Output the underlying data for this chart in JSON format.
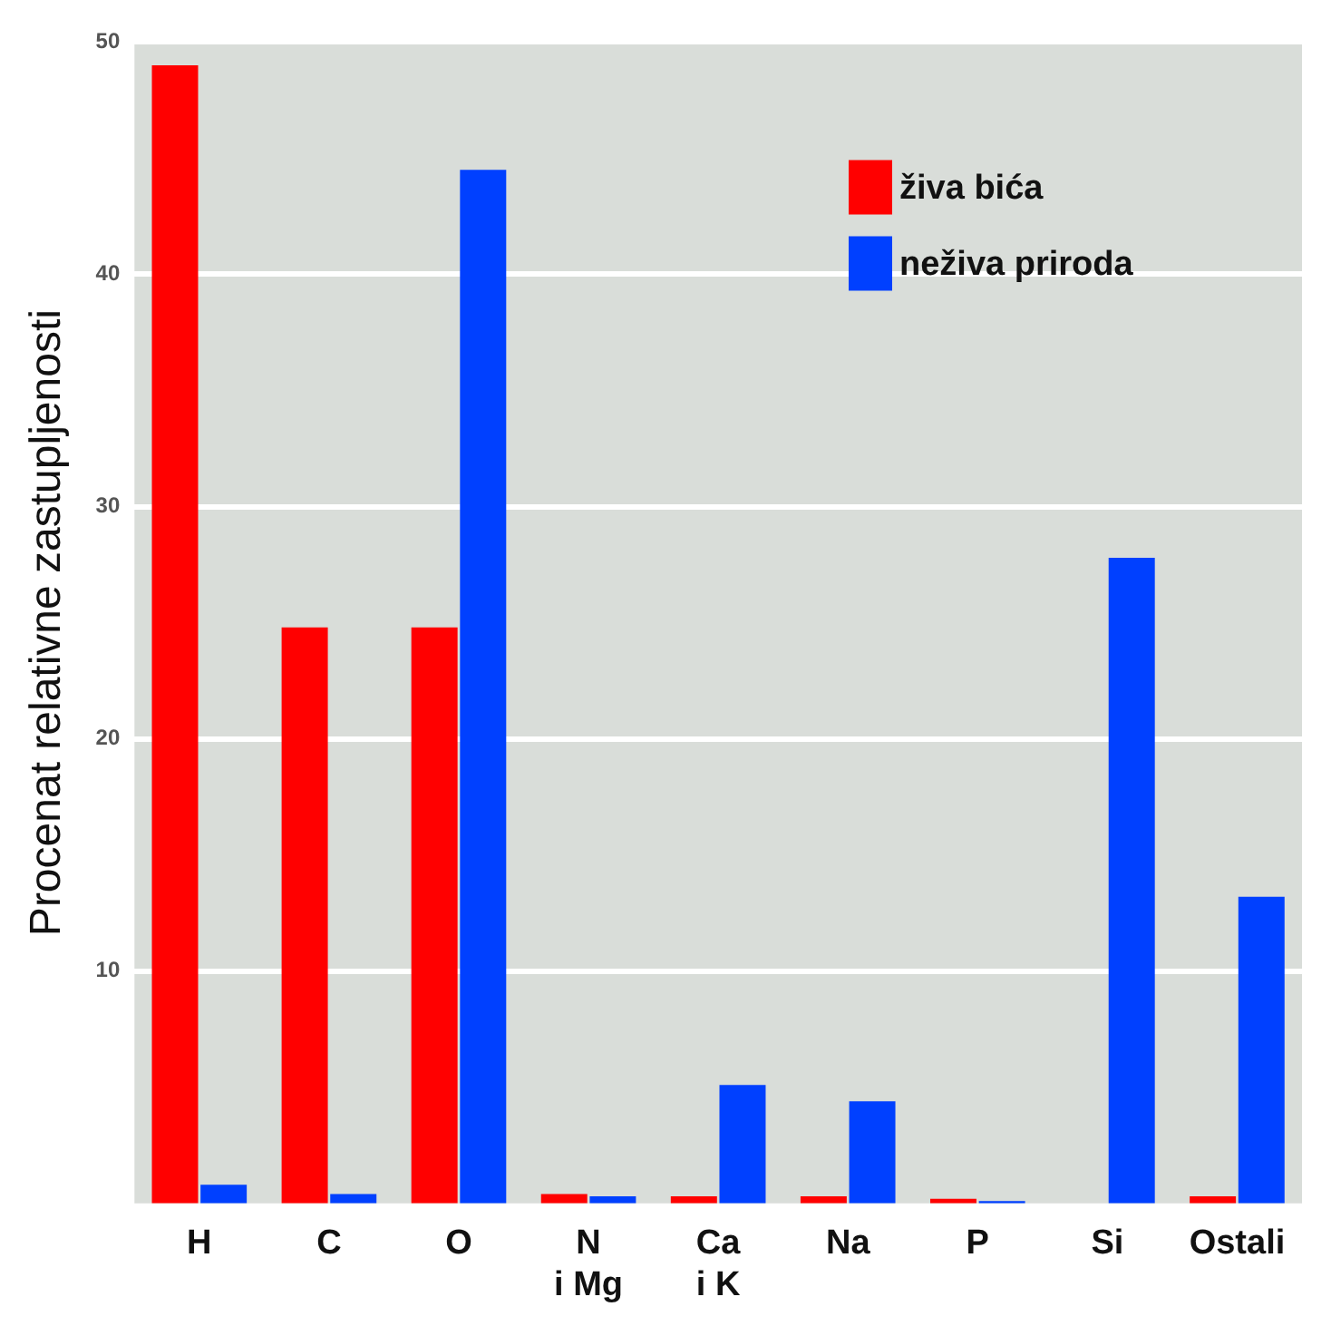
{
  "chart_data": {
    "type": "bar",
    "ylabel": "Procenat relativne zastupljenosti",
    "categories": [
      "H",
      "C",
      "O",
      "N\ni Mg",
      "Ca\ni K",
      "Na",
      "P",
      "Si",
      "Ostali"
    ],
    "series": [
      {
        "name": "živa bića",
        "color": "#ff0000",
        "values": [
          49,
          24.8,
          24.8,
          0.4,
          0.3,
          0.3,
          0.2,
          0,
          0.3
        ]
      },
      {
        "name": "neživa priroda",
        "color": "#0040ff",
        "values": [
          0.8,
          0.4,
          44.5,
          0.3,
          5.1,
          4.4,
          0.1,
          27.8,
          13.2
        ]
      }
    ],
    "ylim": [
      0,
      50
    ],
    "yticks": [
      10,
      20,
      30,
      40,
      50
    ],
    "grid": "y",
    "legend": "top right"
  }
}
